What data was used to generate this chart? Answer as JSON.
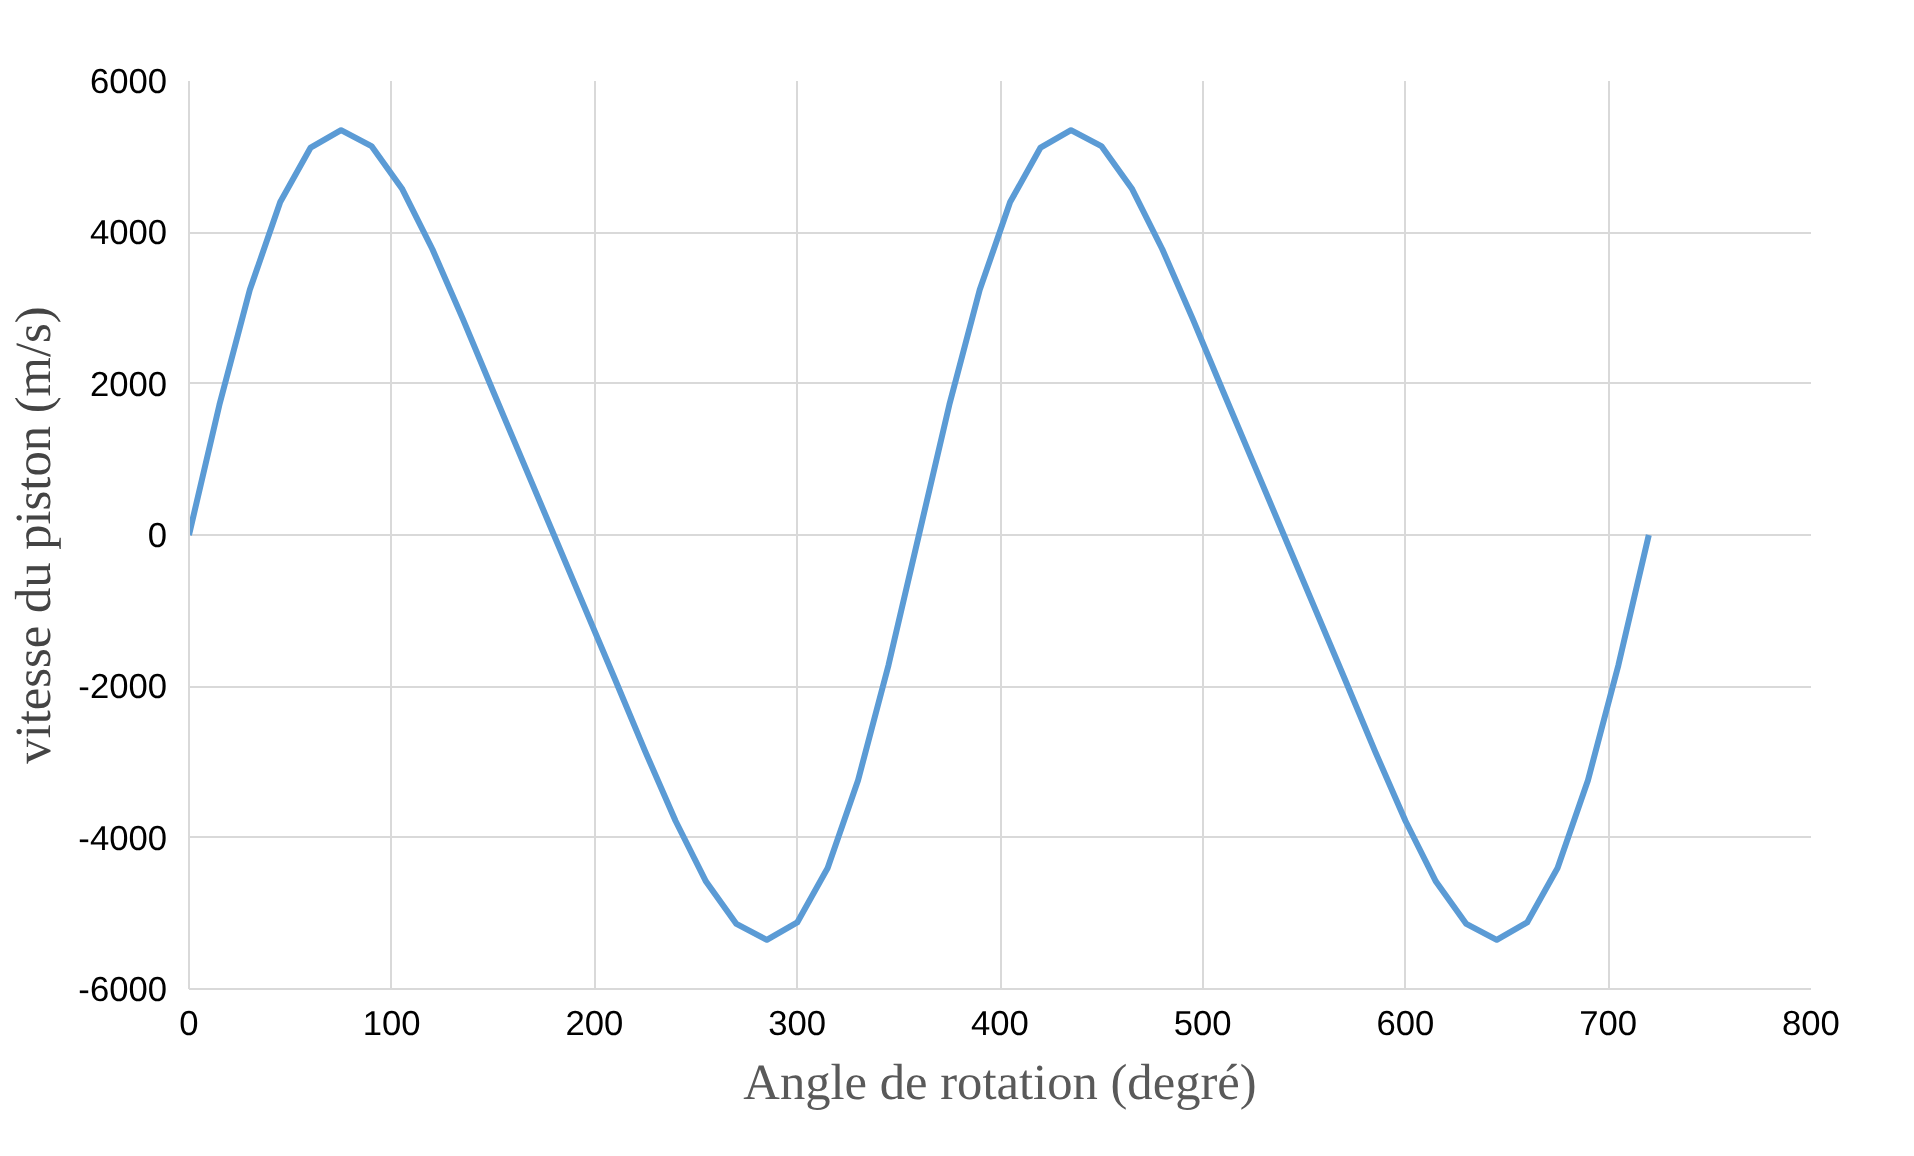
{
  "chart_data": {
    "type": "line",
    "xlabel": "Angle de rotation (degré)",
    "ylabel": "vitesse du piston (m/s)",
    "x": [
      0,
      15,
      30,
      45,
      60,
      75,
      90,
      105,
      120,
      135,
      150,
      165,
      180,
      195,
      210,
      225,
      240,
      255,
      270,
      285,
      300,
      315,
      330,
      345,
      360,
      375,
      390,
      405,
      420,
      435,
      450,
      465,
      480,
      495,
      510,
      525,
      540,
      555,
      570,
      585,
      600,
      615,
      630,
      645,
      660,
      675,
      690,
      705,
      720
    ],
    "series": [
      {
        "color": "#5b9bd5",
        "values": [
          0,
          1720,
          3240,
          4400,
          5120,
          5350,
          5140,
          4580,
          3780,
          2860,
          1900,
          950,
          0,
          -950,
          -1900,
          -2860,
          -3780,
          -4580,
          -5140,
          -5350,
          -5120,
          -4400,
          -3240,
          -1720,
          0,
          1720,
          3240,
          4400,
          5120,
          5350,
          5140,
          4580,
          3780,
          2860,
          1900,
          950,
          0,
          -950,
          -1900,
          -2860,
          -3780,
          -4580,
          -5140,
          -5350,
          -5120,
          -4400,
          -3240,
          -1720,
          0
        ]
      }
    ],
    "xlim": [
      0,
      800
    ],
    "xticks": [
      0,
      100,
      200,
      300,
      400,
      500,
      600,
      700,
      800
    ],
    "ylim": [
      -6000,
      6000
    ],
    "yticks": [
      -6000,
      -4000,
      -2000,
      0,
      2000,
      4000,
      6000
    ],
    "grid": true,
    "marker": "none",
    "line_style": "solid"
  }
}
